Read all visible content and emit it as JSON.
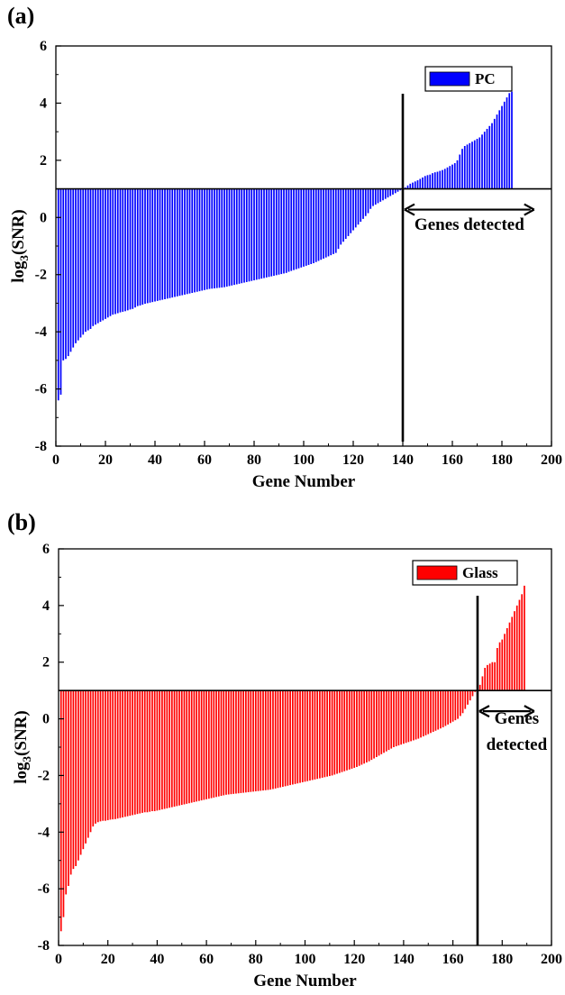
{
  "chart_data": [
    {
      "type": "bar",
      "panel_label": "(a)",
      "legend": [
        {
          "name": "PC",
          "color": "#0000ff"
        }
      ],
      "xlabel": "Gene Number",
      "ylabel": "log3(SNR)",
      "ylabel_base": "log",
      "ylabel_sub": "3",
      "ylabel_rest": "(SNR)",
      "xlim": [
        0,
        200
      ],
      "ylim": [
        -8,
        6
      ],
      "xticks": [
        "0",
        "20",
        "40",
        "60",
        "80",
        "100",
        "120",
        "140",
        "160",
        "180",
        "200"
      ],
      "yticks": [
        "-8",
        "-6",
        "-4",
        "-2",
        "0",
        "2",
        "4",
        "6"
      ],
      "baseline": 1.0,
      "color": "#0000ff",
      "divider_x": 140,
      "annotation": [
        "Genes detected"
      ],
      "arrow_range": [
        140,
        193
      ],
      "x_start": 1,
      "values": [
        -6.4,
        -6.2,
        -5.0,
        -4.95,
        -4.85,
        -4.7,
        -4.55,
        -4.4,
        -4.3,
        -4.2,
        -4.1,
        -4.0,
        -3.95,
        -3.9,
        -3.8,
        -3.75,
        -3.7,
        -3.65,
        -3.6,
        -3.55,
        -3.5,
        -3.45,
        -3.4,
        -3.38,
        -3.35,
        -3.32,
        -3.3,
        -3.28,
        -3.25,
        -3.22,
        -3.2,
        -3.15,
        -3.1,
        -3.08,
        -3.05,
        -3.02,
        -3.0,
        -2.98,
        -2.96,
        -2.94,
        -2.92,
        -2.9,
        -2.88,
        -2.86,
        -2.84,
        -2.82,
        -2.8,
        -2.78,
        -2.76,
        -2.74,
        -2.72,
        -2.7,
        -2.68,
        -2.66,
        -2.64,
        -2.62,
        -2.6,
        -2.58,
        -2.56,
        -2.54,
        -2.52,
        -2.5,
        -2.49,
        -2.48,
        -2.47,
        -2.46,
        -2.45,
        -2.44,
        -2.42,
        -2.4,
        -2.38,
        -2.36,
        -2.34,
        -2.32,
        -2.3,
        -2.28,
        -2.26,
        -2.24,
        -2.22,
        -2.2,
        -2.18,
        -2.16,
        -2.14,
        -2.12,
        -2.1,
        -2.08,
        -2.06,
        -2.04,
        -2.02,
        -2.0,
        -1.98,
        -1.96,
        -1.94,
        -1.9,
        -1.87,
        -1.84,
        -1.81,
        -1.78,
        -1.75,
        -1.72,
        -1.69,
        -1.66,
        -1.63,
        -1.6,
        -1.56,
        -1.52,
        -1.48,
        -1.44,
        -1.4,
        -1.36,
        -1.32,
        -1.28,
        -1.24,
        -1.1,
        -0.95,
        -0.85,
        -0.75,
        -0.65,
        -0.55,
        -0.45,
        -0.35,
        -0.25,
        -0.15,
        -0.05,
        0.05,
        0.15,
        0.3,
        0.4,
        0.45,
        0.5,
        0.55,
        0.6,
        0.65,
        0.7,
        0.75,
        0.8,
        0.85,
        0.9,
        0.95,
        1.0,
        1.05,
        1.12,
        1.18,
        1.22,
        1.26,
        1.3,
        1.35,
        1.4,
        1.45,
        1.48,
        1.5,
        1.55,
        1.58,
        1.6,
        1.63,
        1.66,
        1.7,
        1.75,
        1.8,
        1.85,
        1.9,
        2.0,
        2.2,
        2.4,
        2.5,
        2.55,
        2.6,
        2.65,
        2.7,
        2.75,
        2.8,
        2.9,
        3.0,
        3.1,
        3.2,
        3.3,
        3.45,
        3.6,
        3.75,
        3.9,
        4.05,
        4.2,
        4.35,
        4.4
      ]
    },
    {
      "type": "bar",
      "panel_label": "(b)",
      "legend": [
        {
          "name": "Glass",
          "color": "#ff0000"
        }
      ],
      "xlabel": "Gene Number",
      "ylabel": "log3(SNR)",
      "ylabel_base": "log",
      "ylabel_sub": "3",
      "ylabel_rest": "(SNR)",
      "xlim": [
        0,
        200
      ],
      "ylim": [
        -8,
        6
      ],
      "xticks": [
        "0",
        "20",
        "40",
        "60",
        "80",
        "100",
        "120",
        "140",
        "160",
        "180",
        "200"
      ],
      "yticks": [
        "-8",
        "-6",
        "-4",
        "-2",
        "0",
        "2",
        "4",
        "6"
      ],
      "baseline": 1.0,
      "color": "#ff0000",
      "divider_x": 170,
      "annotation": [
        "Genes",
        "detected"
      ],
      "arrow_range": [
        170,
        193
      ],
      "x_start": 1,
      "values": [
        -7.5,
        -7.0,
        -6.2,
        -5.9,
        -5.5,
        -5.3,
        -5.2,
        -5.0,
        -4.8,
        -4.6,
        -4.4,
        -4.2,
        -4.0,
        -3.8,
        -3.7,
        -3.65,
        -3.62,
        -3.6,
        -3.6,
        -3.58,
        -3.56,
        -3.55,
        -3.54,
        -3.52,
        -3.5,
        -3.48,
        -3.46,
        -3.44,
        -3.42,
        -3.4,
        -3.38,
        -3.36,
        -3.34,
        -3.32,
        -3.3,
        -3.3,
        -3.28,
        -3.26,
        -3.26,
        -3.24,
        -3.22,
        -3.2,
        -3.18,
        -3.16,
        -3.14,
        -3.12,
        -3.1,
        -3.08,
        -3.06,
        -3.04,
        -3.02,
        -3.0,
        -2.98,
        -2.96,
        -2.94,
        -2.92,
        -2.9,
        -2.88,
        -2.86,
        -2.84,
        -2.82,
        -2.8,
        -2.78,
        -2.76,
        -2.74,
        -2.72,
        -2.7,
        -2.68,
        -2.67,
        -2.66,
        -2.65,
        -2.64,
        -2.63,
        -2.62,
        -2.61,
        -2.6,
        -2.59,
        -2.58,
        -2.57,
        -2.56,
        -2.55,
        -2.54,
        -2.53,
        -2.52,
        -2.51,
        -2.5,
        -2.48,
        -2.46,
        -2.44,
        -2.42,
        -2.4,
        -2.38,
        -2.36,
        -2.34,
        -2.32,
        -2.3,
        -2.28,
        -2.26,
        -2.24,
        -2.22,
        -2.2,
        -2.18,
        -2.16,
        -2.14,
        -2.12,
        -2.1,
        -2.08,
        -2.06,
        -2.04,
        -2.02,
        -2.0,
        -1.97,
        -1.94,
        -1.91,
        -1.88,
        -1.85,
        -1.82,
        -1.79,
        -1.76,
        -1.73,
        -1.7,
        -1.66,
        -1.62,
        -1.58,
        -1.54,
        -1.5,
        -1.45,
        -1.4,
        -1.35,
        -1.3,
        -1.25,
        -1.2,
        -1.15,
        -1.1,
        -1.05,
        -1.0,
        -0.97,
        -0.94,
        -0.91,
        -0.88,
        -0.85,
        -0.82,
        -0.79,
        -0.76,
        -0.73,
        -0.7,
        -0.66,
        -0.62,
        -0.58,
        -0.54,
        -0.5,
        -0.46,
        -0.42,
        -0.38,
        -0.34,
        -0.3,
        -0.25,
        -0.2,
        -0.15,
        -0.1,
        -0.05,
        0.0,
        0.1,
        0.2,
        0.35,
        0.5,
        0.65,
        0.8,
        0.95,
        1.0,
        1.2,
        1.5,
        1.8,
        1.9,
        1.95,
        2.0,
        2.0,
        2.5,
        2.7,
        2.8,
        3.0,
        3.2,
        3.4,
        3.6,
        3.8,
        4.0,
        4.2,
        4.4,
        4.7
      ]
    }
  ]
}
